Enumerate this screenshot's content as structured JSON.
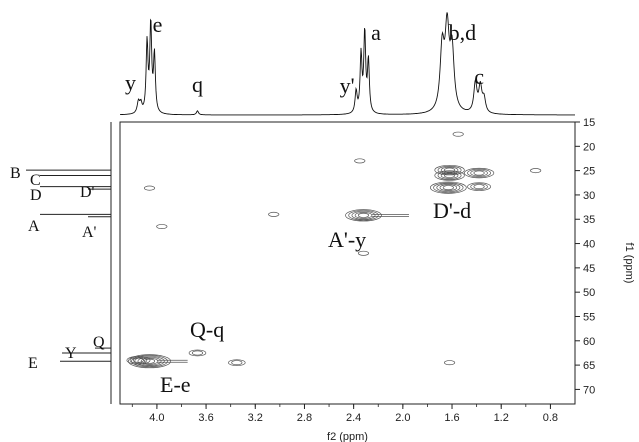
{
  "chart_data": {
    "type": "heatmap",
    "subtype": "2D NMR HSQC contour plot",
    "xlabel": "f2 (ppm)",
    "ylabel": "f1 (ppm)",
    "xlim": [
      4.3,
      0.6
    ],
    "ylim": [
      15,
      73
    ],
    "x_ticks": [
      "4.0",
      "3.6",
      "3.2",
      "2.8",
      "2.4",
      "2.0",
      "1.6",
      "1.2",
      "0.8"
    ],
    "y_ticks": [
      "15",
      "20",
      "25",
      "30",
      "35",
      "40",
      "45",
      "50",
      "55",
      "60",
      "65",
      "70"
    ],
    "grid": false,
    "proton_peak_labels": [
      {
        "label": "y",
        "ppm": 4.15
      },
      {
        "label": "e",
        "ppm": 4.06
      },
      {
        "label": "q",
        "ppm": 3.67
      },
      {
        "label": "y'",
        "ppm": 2.38
      },
      {
        "label": "a",
        "ppm": 2.3
      },
      {
        "label": "b,d",
        "ppm": 1.63
      },
      {
        "label": "c",
        "ppm": 1.38
      }
    ],
    "carbon_peak_labels": [
      {
        "label": "B",
        "ppm": 24.9
      },
      {
        "label": "C",
        "ppm": 26.0
      },
      {
        "label": "D",
        "ppm": 28.3
      },
      {
        "label": "D'",
        "ppm": 28.8
      },
      {
        "label": "A",
        "ppm": 34.0
      },
      {
        "label": "A'",
        "ppm": 34.5
      },
      {
        "label": "Q",
        "ppm": 61.5
      },
      {
        "label": "Y",
        "ppm": 62.5
      },
      {
        "label": "E",
        "ppm": 64.2
      }
    ],
    "cross_peaks": [
      {
        "label": "A'-y",
        "f2": 2.32,
        "f1": 34.2,
        "intensity": 5
      },
      {
        "label": "D'-d",
        "f2": 1.63,
        "f1": 28.5,
        "intensity": 5
      },
      {
        "label": "Q-q",
        "f2": 3.67,
        "f1": 62.5,
        "intensity": 2
      },
      {
        "label": "E-e",
        "f2": 4.06,
        "f1": 64.2,
        "intensity": 6
      }
    ],
    "unlabeled_cross_peaks": [
      {
        "f2": 1.62,
        "f1": 24.9,
        "intensity": 4
      },
      {
        "f2": 1.38,
        "f1": 25.5,
        "intensity": 4
      },
      {
        "f2": 1.38,
        "f1": 28.3,
        "intensity": 3
      },
      {
        "f2": 1.62,
        "f1": 26.0,
        "intensity": 4
      },
      {
        "f2": 0.92,
        "f1": 25.0,
        "intensity": 1
      },
      {
        "f2": 4.15,
        "f1": 64.0,
        "intensity": 3
      },
      {
        "f2": 3.35,
        "f1": 64.5,
        "intensity": 2
      },
      {
        "f2": 3.05,
        "f1": 34.0,
        "intensity": 1
      },
      {
        "f2": 4.06,
        "f1": 28.6,
        "intensity": 1
      },
      {
        "f2": 2.32,
        "f1": 42.0,
        "intensity": 1
      },
      {
        "f2": 2.35,
        "f1": 23.0,
        "intensity": 1
      },
      {
        "f2": 1.62,
        "f1": 64.5,
        "intensity": 1
      },
      {
        "f2": 1.55,
        "f1": 17.5,
        "intensity": 1
      },
      {
        "f2": 3.96,
        "f1": 36.5,
        "intensity": 1
      }
    ],
    "contour_color": "#555555"
  }
}
